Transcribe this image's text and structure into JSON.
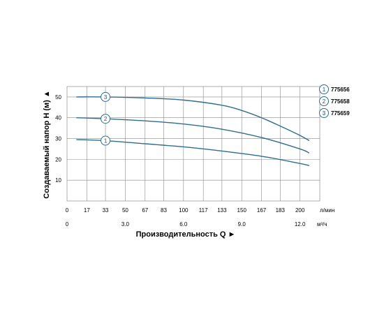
{
  "chart_data": {
    "type": "line",
    "ylabel": "Создаваемый напор H (м) ▲",
    "xlabel": "Производительность Q ►",
    "x_unit_flow": "л/мин",
    "x_unit_volume": "м³/ч",
    "x_ticks_flow": [
      "0",
      "17",
      "33",
      "50",
      "67",
      "83",
      "100",
      "117",
      "133",
      "150",
      "167",
      "183",
      "200"
    ],
    "x_ticks_volume": [
      "0",
      "3.0",
      "6.0",
      "9.0",
      "12.0"
    ],
    "y_ticks": [
      "10",
      "20",
      "30",
      "40",
      "50"
    ],
    "xlim": [
      0,
      217
    ],
    "ylim": [
      0,
      55
    ],
    "grid": true,
    "legend_position": "right",
    "series": [
      {
        "name": "775656",
        "marker": "1",
        "x": [
          8,
          33,
          67,
          100,
          133,
          167,
          200,
          208
        ],
        "values": [
          29.5,
          29,
          27.5,
          26,
          24,
          21.5,
          18,
          17
        ]
      },
      {
        "name": "775658",
        "marker": "2",
        "x": [
          8,
          33,
          67,
          100,
          133,
          167,
          200,
          208
        ],
        "values": [
          40,
          39.5,
          38.5,
          37,
          34.5,
          30.5,
          25,
          23
        ]
      },
      {
        "name": "775659",
        "marker": "3",
        "x": [
          8,
          33,
          67,
          100,
          133,
          150,
          167,
          183,
          200,
          208
        ],
        "values": [
          50,
          50,
          49.5,
          48.5,
          46,
          43.5,
          40,
          36,
          31.5,
          29
        ]
      }
    ],
    "colors": {
      "line": "#2e6e8e",
      "grid": "#8a8a8a",
      "marker_stroke": "#2e6e8e",
      "text": "#000000"
    }
  }
}
